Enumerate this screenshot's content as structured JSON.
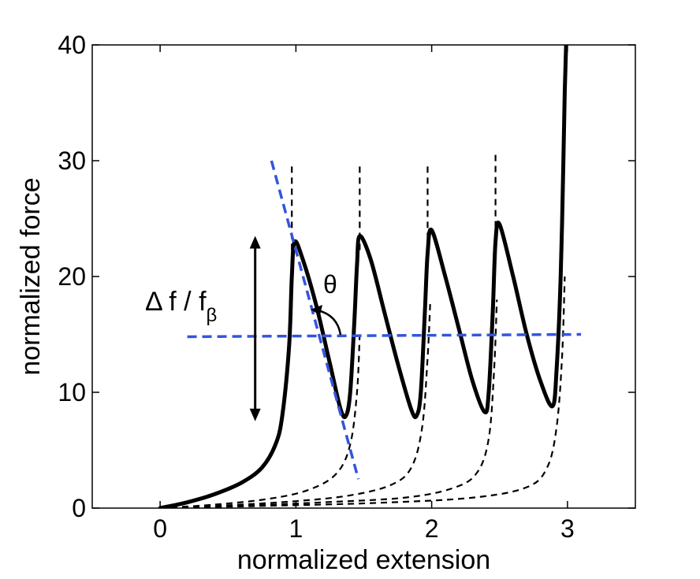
{
  "chart_data": {
    "type": "line",
    "title": "",
    "xlabel": "normalized extension",
    "ylabel": "normalized force",
    "xlim": [
      -0.5,
      3.5
    ],
    "ylim": [
      0,
      40
    ],
    "xticks": [
      0,
      1,
      2,
      3
    ],
    "yticks": [
      0,
      10,
      20,
      30,
      40
    ],
    "grid": false,
    "series": [
      {
        "name": "force-extension (sawtooth)",
        "style": "solid-black-thick",
        "x": [
          0,
          0.2,
          0.4,
          0.6,
          0.75,
          0.85,
          0.9,
          0.95,
          0.97,
          0.99,
          1.05,
          1.15,
          1.25,
          1.33,
          1.37,
          1.4,
          1.43,
          1.45,
          1.47,
          1.55,
          1.65,
          1.75,
          1.85,
          1.89,
          1.92,
          1.95,
          1.97,
          2.0,
          2.1,
          2.2,
          2.3,
          2.39,
          2.42,
          2.45,
          2.47,
          2.5,
          2.6,
          2.7,
          2.8,
          2.89,
          2.92,
          2.95,
          2.97,
          2.98,
          2.99
        ],
        "y": [
          0,
          0.5,
          1.2,
          2.2,
          3.5,
          5.5,
          8,
          14,
          20,
          23,
          21.5,
          17.5,
          12.5,
          8.5,
          8,
          10,
          16,
          21,
          23.5,
          21.5,
          17,
          12.5,
          8.5,
          8,
          10,
          17,
          22,
          24,
          20,
          15.5,
          11,
          8.3,
          10,
          17,
          23,
          24.5,
          20,
          15,
          11,
          8.8,
          12,
          20,
          30,
          36,
          40
        ]
      },
      {
        "name": "WLC branch 1",
        "style": "dashed-black",
        "x": [
          0,
          0.4,
          0.8,
          1.1,
          1.3,
          1.4,
          1.45,
          1.47
        ],
        "y": [
          0,
          0.3,
          0.8,
          1.6,
          3,
          5.5,
          10,
          15
        ]
      },
      {
        "name": "WLC branch 2",
        "style": "dashed-black",
        "x": [
          0,
          0.5,
          1.0,
          1.4,
          1.7,
          1.85,
          1.93,
          1.97,
          1.99
        ],
        "y": [
          0,
          0.25,
          0.6,
          1.1,
          2,
          3.5,
          7,
          13,
          18
        ]
      },
      {
        "name": "WLC branch 3",
        "style": "dashed-black",
        "x": [
          0,
          0.6,
          1.2,
          1.8,
          2.15,
          2.33,
          2.42,
          2.46,
          2.48
        ],
        "y": [
          0,
          0.2,
          0.5,
          0.9,
          1.7,
          3,
          6,
          12,
          18
        ]
      },
      {
        "name": "WLC branch 4",
        "style": "dashed-black",
        "x": [
          0,
          0.8,
          1.6,
          2.3,
          2.7,
          2.85,
          2.92,
          2.96,
          2.98
        ],
        "y": [
          0,
          0.2,
          0.45,
          0.9,
          1.8,
          3.5,
          7,
          13,
          20
        ]
      }
    ],
    "unfolding_peaks": [
      {
        "x": 0.97,
        "y_top": 29.5
      },
      {
        "x": 1.47,
        "y_top": 29.5
      },
      {
        "x": 1.97,
        "y_top": 29.5
      },
      {
        "x": 2.47,
        "y_top": 30.5
      }
    ],
    "guide_lines": [
      {
        "name": "horizontal-guide",
        "color": "#3355dd",
        "x": [
          0.2,
          3.1
        ],
        "y": [
          14.8,
          15
        ]
      },
      {
        "name": "slope-guide",
        "color": "#3355dd",
        "x": [
          0.82,
          1.46
        ],
        "y": [
          30,
          2.5
        ]
      }
    ],
    "annotations": {
      "delta_label_main": "Δ f / f",
      "delta_label_sub": "β",
      "delta_arrow": {
        "x": 0.7,
        "y_from": 7.5,
        "y_to": 23.5
      },
      "angle_label": "θ"
    }
  }
}
